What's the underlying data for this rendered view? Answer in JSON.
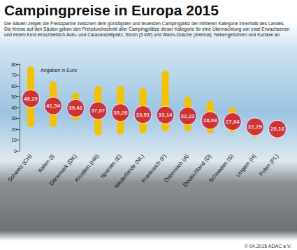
{
  "chart_data": {
    "type": "range_bar",
    "title": "Campingpreise in Europa 2015",
    "subtitle": "Die Säulen zeigen die Preisspanne zwischen dem günstigsten und teuersten Campingplatz der mittleren Kategorie innerhalb des Landes. Die Kreise auf den Säulen geben den Preisdurchschnitt aller Campingplätze dieser Kategorie für eine Übernachtung von zwei Erwachsenen und einem Kind einschließlich Auto- und Caravanstellplatz, Strom (5 kW) und Warm-Dusche (dreimal), Nebengebühren und Kurtaxe an.",
    "y_label": "Angaben in Euro",
    "source": "© 04.2015 ADAC e.V.",
    "categories": [
      "Schweiz (CH)",
      "Italien (I)",
      "Dänemark (DK)",
      "Kroatien (HR)",
      "Spanien (E)",
      "Niederlande (NL)",
      "Frankreich (F)",
      "Österreich (A)",
      "Deutschland (D)",
      "Schweden (S)",
      "Ungarn (H)",
      "Polen (PL)"
    ],
    "series": [
      {
        "type": "range",
        "color": "#f5c200",
        "low": [
          22,
          22,
          28,
          14,
          15,
          16,
          18,
          18,
          16,
          17,
          13,
          12
        ],
        "high": [
          78,
          64,
          54,
          60,
          60,
          58,
          74,
          50,
          46,
          40,
          30,
          28
        ]
      },
      {
        "type": "scatter",
        "marker": "circle",
        "color": "#c8102e",
        "data_labels": true,
        "values": [
          48.29,
          41.54,
          39.42,
          37.07,
          35.28,
          33.51,
          33.14,
          32.22,
          28.08,
          27.04,
          22.29,
          20.16
        ],
        "value_labels": [
          "48,29",
          "41,54",
          "39,42",
          "37,07",
          "35,28",
          "33,51",
          "33,14",
          "32,22",
          "28,08",
          "27,04",
          "22,29",
          "20,16"
        ]
      }
    ],
    "ylim": [
      0,
      80
    ],
    "yticks": [
      0,
      10,
      20,
      30,
      40,
      50,
      60,
      70,
      80
    ],
    "grid": false
  }
}
